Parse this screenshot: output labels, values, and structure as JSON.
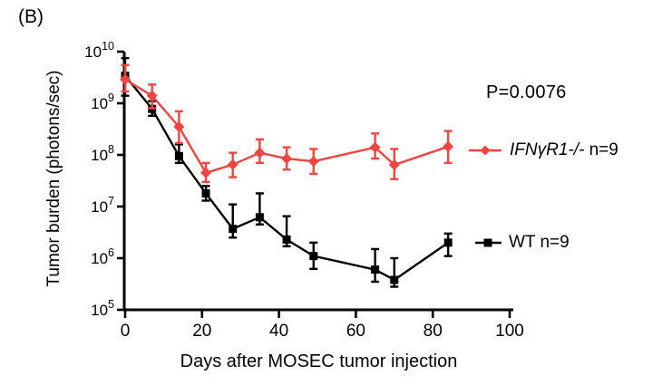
{
  "panel_label": "(B)",
  "annotation": {
    "text": "P=0.0076"
  },
  "chart_data": {
    "type": "line",
    "title": "",
    "xlabel": "Days after MOSEC tumor injection",
    "ylabel": "Tumor burden (photons/sec)",
    "grid": false,
    "legend_position": "right",
    "x_axis": {
      "ticks": [
        0,
        20,
        40,
        60,
        80,
        100
      ],
      "range": [
        0,
        100
      ]
    },
    "y_axis": {
      "scale": "log10",
      "tick_base": "10",
      "tick_exponents": [
        5,
        6,
        7,
        8,
        9,
        10
      ],
      "range_exponents": [
        5,
        10
      ]
    },
    "x": [
      0,
      7,
      14,
      21,
      28,
      35,
      42,
      49,
      65,
      70,
      84
    ],
    "series": [
      {
        "name": "WT n=9",
        "label_italic": "",
        "label_rest": "WT n=9",
        "color": "#000000",
        "marker": "square",
        "values": [
          3400000000.0,
          780000000.0,
          95000000.0,
          18000000.0,
          3700000.0,
          6200000.0,
          2300000.0,
          1100000.0,
          600000.0,
          380000.0,
          2000000.0
        ],
        "err_hi": [
          7500000000.0,
          1100000000.0,
          160000000.0,
          25000000.0,
          11000000.0,
          18000000.0,
          6500000.0,
          2000000.0,
          1500000.0,
          1000000.0,
          3000000.0
        ],
        "err_lo": [
          1400000000.0,
          570000000.0,
          70000000.0,
          13000000.0,
          2500000.0,
          4500000.0,
          1700000.0,
          620000.0,
          350000.0,
          280000.0,
          1100000.0
        ]
      },
      {
        "name": "IFNγR1-/- n=9",
        "label_italic": "IFNγR1-/-",
        "label_rest": " n=9",
        "color": "#F04540",
        "marker": "diamond",
        "values": [
          2900000000.0,
          1400000000.0,
          350000000.0,
          45000000.0,
          65000000.0,
          110000000.0,
          85000000.0,
          75000000.0,
          140000000.0,
          64000000.0,
          145000000.0
        ],
        "err_hi": [
          5500000000.0,
          2300000000.0,
          700000000.0,
          70000000.0,
          110000000.0,
          200000000.0,
          140000000.0,
          130000000.0,
          260000000.0,
          130000000.0,
          290000000.0
        ],
        "err_lo": [
          1700000000.0,
          800000000.0,
          170000000.0,
          30000000.0,
          37000000.0,
          70000000.0,
          52000000.0,
          43000000.0,
          85000000.0,
          34000000.0,
          70000000.0
        ]
      }
    ]
  }
}
